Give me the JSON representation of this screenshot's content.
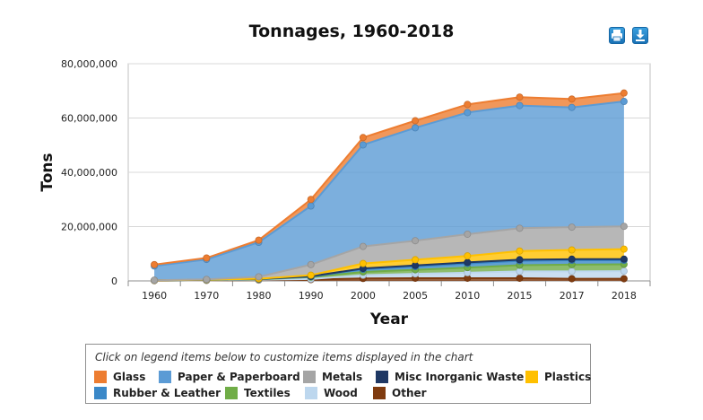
{
  "chart_data": {
    "type": "area",
    "stacked": true,
    "title": "Tonnages, 1960-2018",
    "xlabel": "Year",
    "ylabel": "Tons",
    "categories": [
      "1960",
      "1970",
      "1980",
      "1990",
      "2000",
      "2005",
      "2010",
      "2015",
      "2017",
      "2018"
    ],
    "ylim": [
      0,
      80000000
    ],
    "yticks": [
      0,
      20000000,
      40000000,
      60000000,
      80000000
    ],
    "ytick_labels": [
      "0",
      "20,000,000",
      "40,000,000",
      "60,000,000",
      "80,000,000"
    ],
    "grid": true,
    "series": [
      {
        "name": "Other",
        "color": "#7f3b0f",
        "values": [
          100000,
          200000,
          300000,
          500000,
          900000,
          1000000,
          1000000,
          1000000,
          800000,
          800000
        ]
      },
      {
        "name": "Wood",
        "color": "#bdd7ee",
        "values": [
          50000,
          50000,
          100000,
          200000,
          1200000,
          1600000,
          2000000,
          2500000,
          2700000,
          2800000
        ]
      },
      {
        "name": "Textiles",
        "color": "#70ad47",
        "values": [
          50000,
          100000,
          200000,
          700000,
          1200000,
          1500000,
          1900000,
          2300000,
          2500000,
          2500000
        ]
      },
      {
        "name": "Rubber & Leather",
        "color": "#3a88c8",
        "values": [
          0,
          50000,
          100000,
          200000,
          1000000,
          1200000,
          1500000,
          1600000,
          1600000,
          1500000
        ]
      },
      {
        "name": "Misc Inorganic Waste",
        "color": "#1f3864",
        "values": [
          0,
          0,
          0,
          100000,
          300000,
          400000,
          400000,
          400000,
          400000,
          400000
        ]
      },
      {
        "name": "Plastics",
        "color": "#ffc000",
        "values": [
          0,
          50000,
          100000,
          400000,
          1800000,
          2100000,
          2400000,
          3200000,
          3400000,
          3700000
        ]
      },
      {
        "name": "Metals",
        "color": "#a5a5a5",
        "values": [
          50000,
          100000,
          700000,
          3900000,
          6300000,
          7000000,
          8000000,
          8400000,
          8400000,
          8400000
        ]
      },
      {
        "name": "Paper & Paperboard",
        "color": "#5b9bd5",
        "values": [
          5250000,
          7350000,
          12700000,
          21600000,
          37400000,
          41600000,
          44800000,
          45200000,
          44100000,
          46000000
        ]
      },
      {
        "name": "Glass",
        "color": "#ed7d31",
        "values": [
          500000,
          550000,
          800000,
          2400000,
          2700000,
          2600000,
          3000000,
          3100000,
          3100000,
          3100000
        ]
      }
    ]
  },
  "header": {
    "title": "Tonnages, 1960-2018",
    "print_icon": "print-icon",
    "download_icon": "download-icon"
  },
  "legend": {
    "note": "Click on legend items below to customize items displayed in the chart",
    "items": [
      {
        "label": "Glass",
        "color": "#ed7d31"
      },
      {
        "label": "Paper & Paperboard",
        "color": "#5b9bd5"
      },
      {
        "label": "Metals",
        "color": "#a5a5a5"
      },
      {
        "label": "Misc Inorganic Waste",
        "color": "#1f3864"
      },
      {
        "label": "Plastics",
        "color": "#ffc000"
      },
      {
        "label": "Rubber & Leather",
        "color": "#3a88c8"
      },
      {
        "label": "Textiles",
        "color": "#70ad47"
      },
      {
        "label": "Wood",
        "color": "#bdd7ee"
      },
      {
        "label": "Other",
        "color": "#7f3b0f"
      }
    ]
  }
}
